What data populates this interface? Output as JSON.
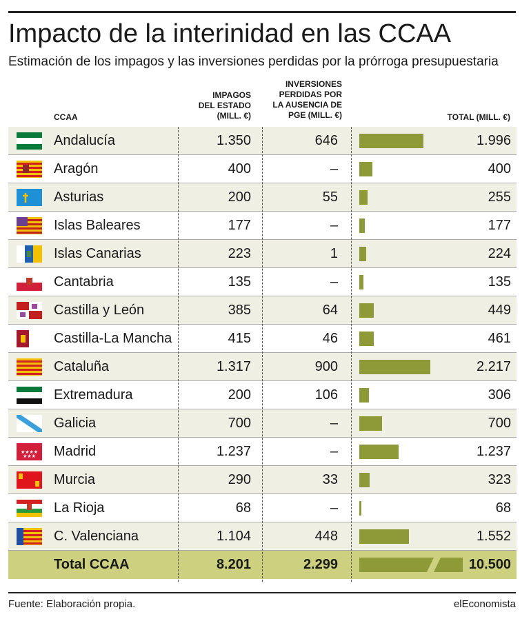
{
  "title": "Impacto de la interinidad en las CCAA",
  "subtitle": "Estimación de los impagos y las inversiones perdidas por la prórroga presupuestaria",
  "headers": {
    "ccaa": "CCAA",
    "impagos": [
      "IMPAGOS",
      "DEL ESTADO",
      "(MILL. €)"
    ],
    "inversiones": [
      "INVERSIONES",
      "PERDIDAS POR",
      "LA AUSENCIA DE",
      "PGE  (MILL. €)"
    ],
    "total": "TOTAL (MILL. €)"
  },
  "colors": {
    "bar": "#8d9a37",
    "total_row": "#cdd17f",
    "shade_row": "#efefe3"
  },
  "chart_data": {
    "type": "table",
    "columns": [
      "CCAA",
      "IMPAGOS DEL ESTADO (MILL. €)",
      "INVERSIONES PERDIDAS POR LA AUSENCIA DE PGE (MILL. €)",
      "TOTAL (MILL. €)"
    ],
    "bar_max": 2217,
    "rows": [
      {
        "name": "Andalucía",
        "impagos": "1.350",
        "inversiones": "646",
        "total": "1.996",
        "total_value": 1996,
        "flag": "andalucia-flag"
      },
      {
        "name": "Aragón",
        "impagos": "400",
        "inversiones": "–",
        "total": "400",
        "total_value": 400,
        "flag": "aragon-flag"
      },
      {
        "name": "Asturias",
        "impagos": "200",
        "inversiones": "55",
        "total": "255",
        "total_value": 255,
        "flag": "asturias-flag"
      },
      {
        "name": "Islas Baleares",
        "impagos": "177",
        "inversiones": "–",
        "total": "177",
        "total_value": 177,
        "flag": "baleares-flag"
      },
      {
        "name": "Islas Canarias",
        "impagos": "223",
        "inversiones": "1",
        "total": "224",
        "total_value": 224,
        "flag": "canarias-flag"
      },
      {
        "name": "Cantabria",
        "impagos": "135",
        "inversiones": "–",
        "total": "135",
        "total_value": 135,
        "flag": "cantabria-flag"
      },
      {
        "name": "Castilla y León",
        "impagos": "385",
        "inversiones": "64",
        "total": "449",
        "total_value": 449,
        "flag": "castilla-leon-flag"
      },
      {
        "name": "Castilla-La Mancha",
        "impagos": "415",
        "inversiones": "46",
        "total": "461",
        "total_value": 461,
        "flag": "castilla-la-mancha-flag"
      },
      {
        "name": "Cataluña",
        "impagos": "1.317",
        "inversiones": "900",
        "total": "2.217",
        "total_value": 2217,
        "flag": "cataluna-flag"
      },
      {
        "name": "Extremadura",
        "impagos": "200",
        "inversiones": "106",
        "total": "306",
        "total_value": 306,
        "flag": "extremadura-flag"
      },
      {
        "name": "Galicia",
        "impagos": "700",
        "inversiones": "–",
        "total": "700",
        "total_value": 700,
        "flag": "galicia-flag"
      },
      {
        "name": "Madrid",
        "impagos": "1.237",
        "inversiones": "–",
        "total": "1.237",
        "total_value": 1237,
        "flag": "madrid-flag"
      },
      {
        "name": "Murcia",
        "impagos": "290",
        "inversiones": "33",
        "total": "323",
        "total_value": 323,
        "flag": "murcia-flag"
      },
      {
        "name": "La Rioja",
        "impagos": "68",
        "inversiones": "–",
        "total": "68",
        "total_value": 68,
        "flag": "la-rioja-flag"
      },
      {
        "name": "C. Valenciana",
        "impagos": "1.104",
        "inversiones": "448",
        "total": "1.552",
        "total_value": 1552,
        "flag": "valenciana-flag"
      }
    ],
    "total_row": {
      "name": "Total CCAA",
      "impagos": "8.201",
      "inversiones": "2.299",
      "total": "10.500",
      "total_value": 10500
    }
  },
  "footer": {
    "source": "Fuente: Elaboración propia.",
    "brand": "elEconomista"
  }
}
